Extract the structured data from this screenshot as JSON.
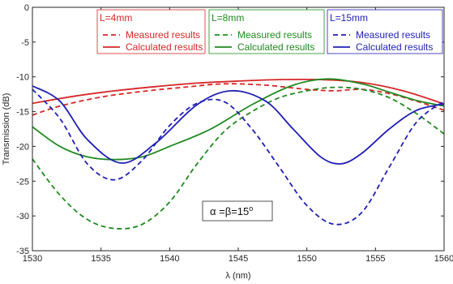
{
  "chart_data": {
    "type": "line",
    "xlabel": "λ (nm)",
    "ylabel": "Transmission (dB)",
    "xlim": [
      1530,
      1560
    ],
    "ylim": [
      -35,
      0
    ],
    "xticks": [
      1530,
      1535,
      1540,
      1545,
      1550,
      1555,
      1560
    ],
    "yticks": [
      0,
      -5,
      -10,
      -15,
      -20,
      -25,
      -30,
      -35
    ],
    "grid": false,
    "legend_groups": [
      {
        "title": "L=4mm",
        "color": "#d62728",
        "measured_label": "Measured results",
        "calculated_label": "Calculated results"
      },
      {
        "title": "L=8mm",
        "color": "#1f8a1f",
        "measured_label": "Measured results",
        "calculated_label": "Calculated results"
      },
      {
        "title": "L=15mm",
        "color": "#1f1fb4",
        "measured_label": "Measured results",
        "calculated_label": "Calculated results"
      }
    ],
    "annotation": {
      "prefix": "α =β=15",
      "superscript": "o"
    },
    "series": [
      {
        "group": "L=4mm",
        "kind": "measured",
        "style": "dashed",
        "color": "#d62728",
        "x": [
          1530,
          1532,
          1535,
          1538,
          1541,
          1544,
          1547,
          1550,
          1552,
          1554,
          1556,
          1558,
          1560
        ],
        "y": [
          -15.5,
          -14.2,
          -12.9,
          -12.1,
          -11.5,
          -11.0,
          -11.2,
          -11.8,
          -12.0,
          -11.8,
          -12.4,
          -13.5,
          -14.8
        ]
      },
      {
        "group": "L=4mm",
        "kind": "calculated",
        "style": "solid",
        "color": "#d62728",
        "x": [
          1530,
          1533,
          1536,
          1539,
          1542,
          1545,
          1548,
          1551,
          1554,
          1557,
          1560
        ],
        "y": [
          -13.8,
          -12.8,
          -12.0,
          -11.4,
          -10.9,
          -10.6,
          -10.4,
          -10.4,
          -10.8,
          -12.0,
          -13.9
        ]
      },
      {
        "group": "L=8mm",
        "kind": "measured",
        "style": "dashed",
        "color": "#1f8a1f",
        "x": [
          1530,
          1532,
          1534,
          1536,
          1538,
          1540,
          1542,
          1544,
          1546,
          1548,
          1550,
          1552,
          1554,
          1556,
          1558,
          1560
        ],
        "y": [
          -21.8,
          -27.0,
          -30.5,
          -31.8,
          -31.2,
          -28.0,
          -22.5,
          -17.8,
          -15.0,
          -13.0,
          -12.0,
          -11.5,
          -11.8,
          -13.0,
          -15.3,
          -18.2
        ]
      },
      {
        "group": "L=8mm",
        "kind": "calculated",
        "style": "solid",
        "color": "#1f8a1f",
        "x": [
          1530,
          1532,
          1534,
          1536,
          1538,
          1540,
          1543,
          1546,
          1549,
          1551.5,
          1554,
          1556,
          1558,
          1560
        ],
        "y": [
          -17.2,
          -20.0,
          -21.5,
          -21.9,
          -21.5,
          -20.0,
          -17.5,
          -14.0,
          -11.2,
          -10.3,
          -11.0,
          -12.2,
          -13.4,
          -14.2
        ]
      },
      {
        "group": "L=15mm",
        "kind": "measured",
        "style": "dashed",
        "color": "#1f1fb4",
        "x": [
          1530,
          1532,
          1534,
          1536,
          1538,
          1540,
          1542,
          1544,
          1546,
          1548,
          1550,
          1552,
          1554,
          1556,
          1558,
          1560
        ],
        "y": [
          -11.8,
          -16.0,
          -22.5,
          -24.8,
          -22.0,
          -17.0,
          -13.8,
          -13.6,
          -17.5,
          -23.0,
          -28.5,
          -31.2,
          -29.5,
          -23.0,
          -16.5,
          -13.5
        ]
      },
      {
        "group": "L=15mm",
        "kind": "calculated",
        "style": "solid",
        "color": "#1f1fb4",
        "x": [
          1530,
          1532,
          1534,
          1536.5,
          1539,
          1542,
          1544.5,
          1547,
          1549,
          1551,
          1552.5,
          1554,
          1556,
          1558,
          1560
        ],
        "y": [
          -11.3,
          -13.5,
          -19.0,
          -22.4,
          -19.5,
          -14.0,
          -12.0,
          -13.5,
          -17.5,
          -21.5,
          -22.5,
          -21.0,
          -17.5,
          -14.8,
          -13.9
        ]
      }
    ]
  }
}
